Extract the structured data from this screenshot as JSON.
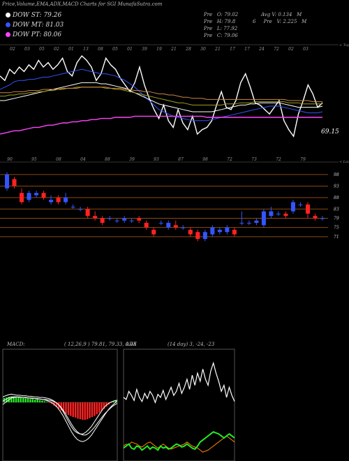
{
  "header": {
    "title": "Price,Volume,EMA,ADX,MACD Charts for SGI MunafaSutra.com",
    "legend": [
      {
        "label": "DOW ST: 79.26",
        "color": "#ffffff"
      },
      {
        "label": "DOW MT: 81.03",
        "color": "#3355ff"
      },
      {
        "label": "DOW PT: 80.06",
        "color": "#ff44ff"
      }
    ],
    "ohlc": {
      "open": "Pre   O: 79.02",
      "high": "Pre   H: 79.8",
      "low": "Pre   L: 77.92",
      "close": "Pre   C: 79.06"
    },
    "volume": {
      "avg": "Avg V: 0.134   M",
      "pre": "6     Pre   V: 2.225   M"
    }
  },
  "chart_data": [
    {
      "id": "ema_panel",
      "type": "line",
      "top_date_labels": [
        "02",
        "03",
        "05",
        "02",
        "01",
        "13",
        "08",
        "05",
        "01",
        "39",
        "19",
        "21",
        "28",
        "30",
        "21",
        "17",
        "17",
        "24",
        "72",
        "02",
        "03"
      ],
      "bottom_date_labels": [
        "90",
        "95",
        "08",
        "04",
        "88",
        "39",
        "93",
        "87",
        "98",
        "72",
        "73",
        "72",
        "79"
      ],
      "corner_label": "< Topa",
      "last_value_label": "69.15",
      "series": [
        {
          "color": "#ffffff",
          "values": [
            112,
            108,
            118,
            114,
            120,
            116,
            122,
            118,
            126,
            120,
            124,
            118,
            122,
            128,
            116,
            112,
            124,
            130,
            126,
            120,
            108,
            114,
            128,
            122,
            118,
            110,
            104,
            98,
            106,
            120,
            104,
            92,
            82,
            74,
            86,
            72,
            66,
            82,
            70,
            64,
            76,
            60,
            64,
            66,
            72,
            86,
            98,
            84,
            82,
            90,
            106,
            114,
            102,
            88,
            86,
            82,
            78,
            84,
            90,
            72,
            64,
            58,
            78,
            90,
            104,
            96,
            84,
            88
          ]
        },
        {
          "color": "#3355ff",
          "values": [
            100,
            102,
            104,
            107,
            108,
            108,
            109,
            109,
            110,
            111,
            111,
            112,
            113,
            114,
            115,
            116,
            117,
            118,
            117,
            116,
            115,
            114,
            114,
            113,
            112,
            110,
            108,
            105,
            102,
            98,
            94,
            90,
            86,
            82,
            80,
            78,
            76,
            75,
            74,
            73,
            72,
            72,
            72,
            72,
            73,
            74,
            75,
            76,
            77,
            78,
            79,
            80,
            81,
            82,
            83,
            84,
            85,
            85,
            85,
            84,
            83,
            82,
            81,
            80,
            79,
            79,
            79,
            80
          ]
        },
        {
          "color": "#ffffff",
          "values": [
            90,
            90,
            91,
            92,
            93,
            94,
            95,
            96,
            97,
            98,
            99,
            100,
            101,
            102,
            103,
            104,
            105,
            106,
            106,
            106,
            106,
            105,
            105,
            104,
            103,
            102,
            101,
            99,
            97,
            95,
            93,
            91,
            89,
            87,
            86,
            85,
            84,
            83,
            82,
            81,
            80,
            80,
            80,
            80,
            80,
            81,
            82,
            83,
            84,
            85,
            86,
            86,
            87,
            87,
            88,
            88,
            88,
            88,
            88,
            87,
            86,
            85,
            84,
            84,
            84,
            84,
            84,
            85
          ]
        },
        {
          "color": "#a0a020",
          "values": [
            94,
            94,
            95,
            95,
            96,
            96,
            97,
            97,
            98,
            98,
            99,
            99,
            100,
            100,
            101,
            101,
            102,
            102,
            102,
            102,
            102,
            102,
            101,
            101,
            100,
            100,
            99,
            98,
            97,
            96,
            95,
            94,
            93,
            92,
            91,
            90,
            89,
            88,
            88,
            87,
            86,
            86,
            86,
            86,
            86,
            86,
            86,
            87,
            87,
            87,
            88,
            88,
            88,
            89,
            89,
            89,
            89,
            89,
            89,
            89,
            88,
            88,
            88,
            87,
            87,
            87,
            87,
            87
          ]
        },
        {
          "color": "#cc8844",
          "values": [
            97,
            97,
            97,
            98,
            98,
            98,
            99,
            99,
            99,
            100,
            100,
            100,
            100,
            101,
            101,
            101,
            101,
            102,
            102,
            102,
            102,
            102,
            102,
            101,
            101,
            101,
            100,
            100,
            99,
            99,
            98,
            98,
            97,
            96,
            96,
            95,
            95,
            94,
            93,
            93,
            92,
            92,
            92,
            91,
            91,
            91,
            91,
            91,
            91,
            91,
            91,
            91,
            91,
            91,
            91,
            91,
            91,
            91,
            91,
            91,
            90,
            90,
            90,
            90,
            90,
            89,
            89,
            89
          ]
        },
        {
          "color": "#ff44ff",
          "values": [
            60,
            61,
            62,
            63,
            63,
            64,
            65,
            66,
            66,
            67,
            68,
            68,
            69,
            70,
            70,
            71,
            71,
            72,
            72,
            73,
            73,
            74,
            74,
            74,
            75,
            75,
            75,
            75,
            76,
            76,
            76,
            76,
            76,
            76,
            76,
            76,
            76,
            76,
            76,
            76,
            76,
            76,
            76,
            75,
            75,
            75,
            75,
            75,
            75,
            75,
            75,
            75,
            75,
            75,
            75,
            75,
            75,
            75,
            75,
            75,
            75,
            75,
            75,
            75,
            75,
            75,
            75,
            75
          ]
        }
      ]
    },
    {
      "id": "price_panel",
      "type": "candlestick",
      "y_ticks": [
        98,
        93,
        88,
        83,
        79,
        75,
        71
      ],
      "corner_label": "< Loum",
      "candles": [
        {
          "o": 92,
          "c": 98,
          "h": 99,
          "l": 91
        },
        {
          "o": 96,
          "c": 93,
          "h": 97,
          "l": 92
        },
        {
          "o": 90,
          "c": 86,
          "h": 92,
          "l": 85
        },
        {
          "o": 87,
          "c": 90,
          "h": 91,
          "l": 86
        },
        {
          "o": 89,
          "c": 90,
          "h": 91,
          "l": 88
        },
        {
          "o": 90,
          "c": 88,
          "h": 91,
          "l": 87
        },
        {
          "o": 86,
          "c": 87,
          "h": 89,
          "l": 85
        },
        {
          "o": 88,
          "c": 86,
          "h": 89,
          "l": 85
        },
        {
          "o": 86,
          "c": 88,
          "h": 90,
          "l": 85
        },
        {
          "o": 84,
          "c": 84,
          "h": 85,
          "l": 83
        },
        {
          "o": 83,
          "c": 83,
          "h": 84,
          "l": 82
        },
        {
          "o": 83,
          "c": 80,
          "h": 84,
          "l": 79
        },
        {
          "o": 80,
          "c": 79,
          "h": 82,
          "l": 78
        },
        {
          "o": 79,
          "c": 77,
          "h": 80,
          "l": 76
        },
        {
          "o": 79,
          "c": 79,
          "h": 80,
          "l": 78
        },
        {
          "o": 78,
          "c": 78,
          "h": 79,
          "l": 77
        },
        {
          "o": 78,
          "c": 79,
          "h": 80,
          "l": 77
        },
        {
          "o": 78,
          "c": 78,
          "h": 79,
          "l": 77
        },
        {
          "o": 79,
          "c": 78,
          "h": 80,
          "l": 77
        },
        {
          "o": 77,
          "c": 75,
          "h": 78,
          "l": 74
        },
        {
          "o": 74,
          "c": 72,
          "h": 75,
          "l": 71
        },
        {
          "o": 77,
          "c": 77,
          "h": 78,
          "l": 76
        },
        {
          "o": 75,
          "c": 77,
          "h": 78,
          "l": 74
        },
        {
          "o": 76,
          "c": 75,
          "h": 78,
          "l": 74
        },
        {
          "o": 75,
          "c": 75,
          "h": 76,
          "l": 74
        },
        {
          "o": 74,
          "c": 72,
          "h": 75,
          "l": 71
        },
        {
          "o": 73,
          "c": 70,
          "h": 74,
          "l": 69
        },
        {
          "o": 70,
          "c": 73,
          "h": 74,
          "l": 69
        },
        {
          "o": 72,
          "c": 75,
          "h": 76,
          "l": 71
        },
        {
          "o": 73,
          "c": 74,
          "h": 75,
          "l": 72
        },
        {
          "o": 73,
          "c": 75,
          "h": 76,
          "l": 72
        },
        {
          "o": 74,
          "c": 72,
          "h": 75,
          "l": 71
        },
        {
          "o": 77,
          "c": 77,
          "h": 82,
          "l": 76
        },
        {
          "o": 77,
          "c": 77,
          "h": 78,
          "l": 76
        },
        {
          "o": 77,
          "c": 78,
          "h": 79,
          "l": 76
        },
        {
          "o": 76,
          "c": 82,
          "h": 83,
          "l": 75
        },
        {
          "o": 80,
          "c": 82,
          "h": 84,
          "l": 79
        },
        {
          "o": 81,
          "c": 81,
          "h": 82,
          "l": 80
        },
        {
          "o": 81,
          "c": 80,
          "h": 82,
          "l": 79
        },
        {
          "o": 82,
          "c": 86,
          "h": 87,
          "l": 81
        },
        {
          "o": 85,
          "c": 85,
          "h": 86,
          "l": 84
        },
        {
          "o": 85,
          "c": 81,
          "h": 86,
          "l": 79
        },
        {
          "o": 80,
          "c": 79,
          "h": 81,
          "l": 78
        },
        {
          "o": 79,
          "c": 79,
          "h": 80,
          "l": 78
        }
      ]
    },
    {
      "id": "macd_panel",
      "type": "bar",
      "label": "MACD:",
      "params": "( 12,26,9 ) 79.81, 79.33, 0.48",
      "histogram": [
        8,
        9,
        10,
        10,
        10,
        9,
        9,
        8,
        8,
        7,
        7,
        6,
        6,
        5,
        5,
        4,
        3,
        2,
        1,
        -1,
        -3,
        -6,
        -9,
        -12,
        -15,
        -18,
        -21,
        -23,
        -25,
        -27,
        -28,
        -30,
        -31,
        -32,
        -32,
        -31,
        -29,
        -27,
        -25,
        -22,
        -19,
        -16,
        -12,
        -8,
        -4,
        -1,
        2,
        4
      ],
      "macd": [
        10,
        12,
        14,
        15,
        14,
        13,
        13,
        12,
        12,
        11,
        11,
        10,
        10,
        9,
        9,
        8,
        7,
        5,
        2,
        -2,
        -8,
        -16,
        -26,
        -36,
        -45,
        -52,
        -56,
        -58,
        -58,
        -55,
        -50,
        -44,
        -36,
        -28,
        -20,
        -12,
        -6,
        -2,
        1,
        3,
        4
      ],
      "signal": [
        6,
        9,
        12,
        14,
        14,
        14,
        13,
        13,
        12,
        12,
        11,
        11,
        10,
        10,
        9,
        9,
        8,
        7,
        5,
        2,
        -3,
        -10,
        -18,
        -27,
        -36,
        -44,
        -50,
        -54,
        -56,
        -56,
        -53,
        -48,
        -42,
        -35,
        -28,
        -21,
        -15,
        -10,
        -5,
        -1,
        2
      ],
      "trend": [
        -4,
        0,
        4,
        8,
        9,
        10,
        10,
        9,
        9,
        8,
        8,
        7,
        7,
        6,
        5,
        4,
        2,
        0,
        -4,
        -9,
        -16,
        -24,
        -34,
        -44,
        -54,
        -62,
        -68,
        -71,
        -72,
        -70,
        -66,
        -60,
        -52,
        -44,
        -36,
        -28,
        -20,
        -13,
        -7,
        -2,
        2
      ]
    },
    {
      "id": "adx_panel",
      "type": "line",
      "label": "ADX",
      "params": "(14 day) 3, -24, -23",
      "adx": [
        60,
        58,
        66,
        62,
        57,
        68,
        60,
        56,
        64,
        59,
        66,
        62,
        55,
        63,
        60,
        67,
        58,
        64,
        70,
        62,
        66,
        74,
        64,
        70,
        78,
        68,
        82,
        72,
        84,
        76,
        88,
        78,
        72,
        86,
        94,
        84,
        76,
        66,
        72,
        60,
        70,
        62,
        56
      ],
      "plus_di": [
        10,
        12,
        14,
        10,
        9,
        12,
        11,
        8,
        10,
        12,
        9,
        11,
        10,
        8,
        12,
        10,
        11,
        9,
        10,
        12,
        14,
        13,
        11,
        12,
        14,
        12,
        10,
        9,
        12,
        16,
        18,
        20,
        22,
        24,
        26,
        25,
        24,
        22,
        20,
        22,
        24,
        22,
        20
      ],
      "minus_di": [
        12,
        14,
        13,
        16,
        15,
        14,
        12,
        11,
        13,
        15,
        16,
        14,
        12,
        10,
        12,
        14,
        12,
        10,
        9,
        10,
        11,
        12,
        13,
        14,
        16,
        14,
        12,
        11,
        10,
        8,
        6,
        7,
        8,
        10,
        12,
        14,
        16,
        18,
        20,
        22,
        20,
        18,
        16
      ]
    }
  ]
}
